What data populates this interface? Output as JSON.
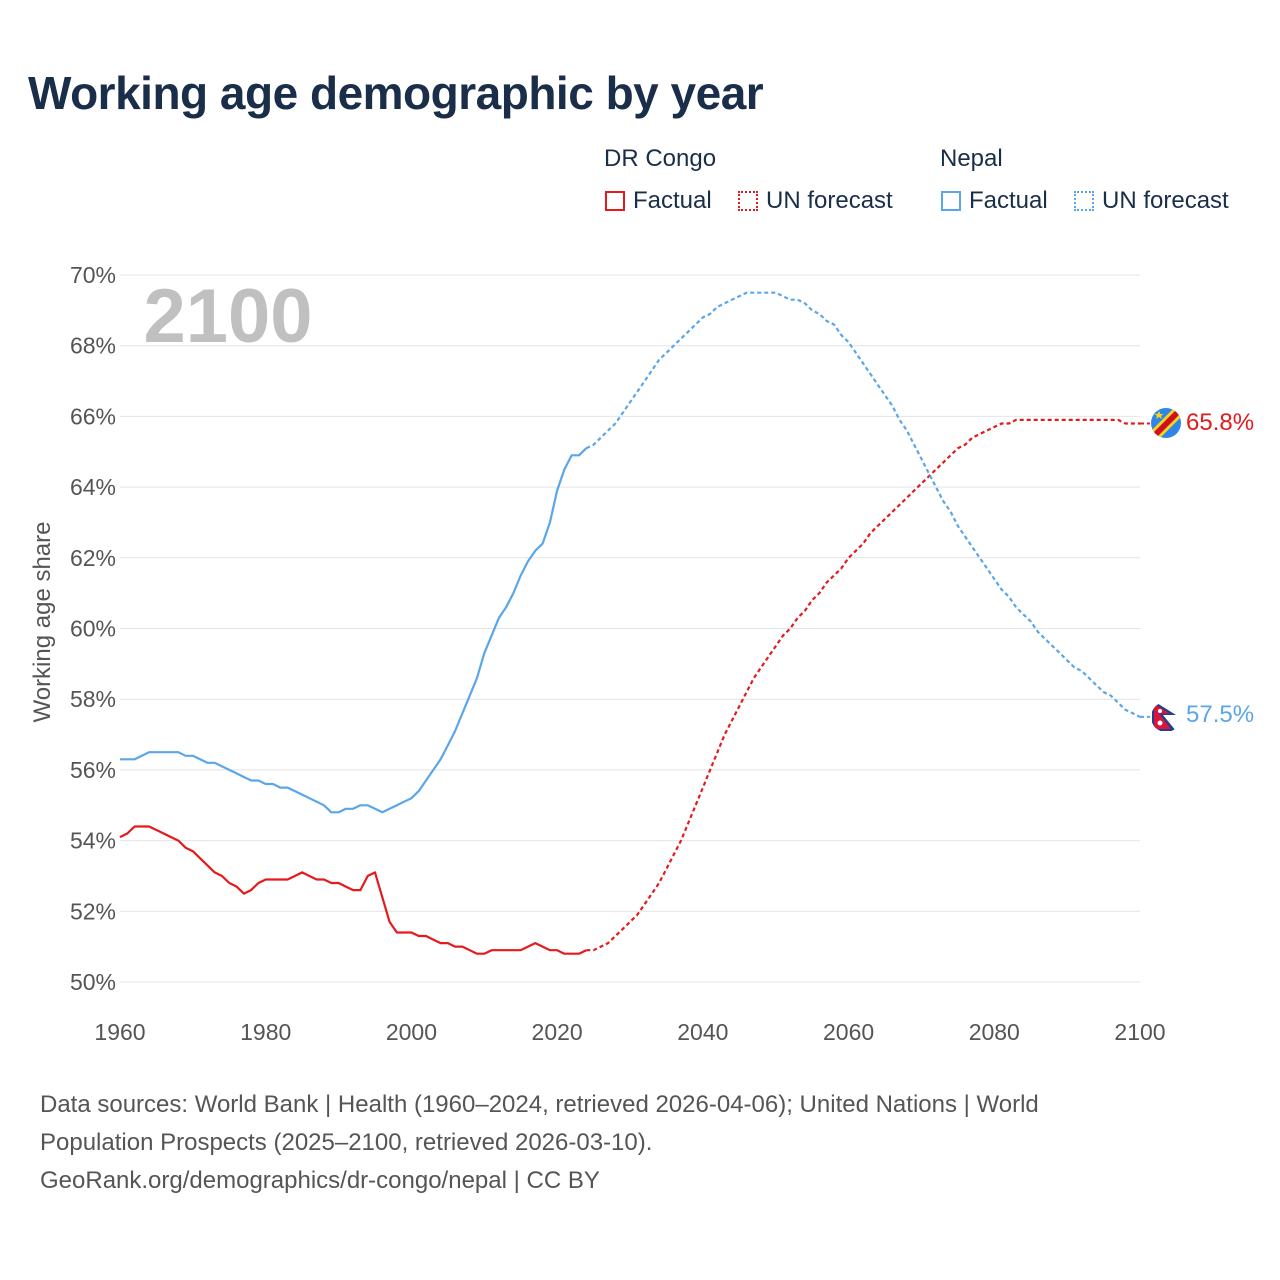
{
  "title": "Working age demographic by year",
  "legend": {
    "groups": [
      {
        "name": "DR Congo",
        "color": "#e41a1c",
        "factual_label": "Factual",
        "forecast_label": "UN forecast"
      },
      {
        "name": "Nepal",
        "color": "#5aa6e8",
        "factual_label": "Factual",
        "forecast_label": "UN forecast"
      }
    ]
  },
  "year_watermark": "2100",
  "end_labels": {
    "dr_congo": "65.8%",
    "nepal": "57.5%"
  },
  "sources": {
    "line1": "Data sources: World Bank | Health (1960–2024, retrieved 2026-04-06); United Nations | World",
    "line2": "Population Prospects (2025–2100, retrieved 2026-03-10).",
    "line3": "GeoRank.org/demographics/dr-congo/nepal | CC BY"
  },
  "chart_data": {
    "type": "line",
    "title": "Working age demographic by year",
    "xlabel": "",
    "ylabel": "Working age share",
    "xlim": [
      1960,
      2100
    ],
    "ylim": [
      50,
      70
    ],
    "x_ticks": [
      1960,
      1980,
      2000,
      2020,
      2040,
      2060,
      2080,
      2100
    ],
    "y_ticks": [
      50,
      52,
      54,
      56,
      58,
      60,
      62,
      64,
      66,
      68,
      70
    ],
    "y_tick_labels": [
      "50%",
      "52%",
      "54%",
      "56%",
      "58%",
      "60%",
      "62%",
      "64%",
      "66%",
      "68%",
      "70%"
    ],
    "grid": true,
    "series": [
      {
        "name": "DR Congo",
        "color": "#e41a1c",
        "end_value": 65.8,
        "factual": [
          [
            1960,
            54.1
          ],
          [
            1961,
            54.2
          ],
          [
            1962,
            54.4
          ],
          [
            1963,
            54.4
          ],
          [
            1964,
            54.4
          ],
          [
            1965,
            54.3
          ],
          [
            1966,
            54.2
          ],
          [
            1967,
            54.1
          ],
          [
            1968,
            54.0
          ],
          [
            1969,
            53.8
          ],
          [
            1970,
            53.7
          ],
          [
            1971,
            53.5
          ],
          [
            1972,
            53.3
          ],
          [
            1973,
            53.1
          ],
          [
            1974,
            53.0
          ],
          [
            1975,
            52.8
          ],
          [
            1976,
            52.7
          ],
          [
            1977,
            52.5
          ],
          [
            1978,
            52.6
          ],
          [
            1979,
            52.8
          ],
          [
            1980,
            52.9
          ],
          [
            1981,
            52.9
          ],
          [
            1982,
            52.9
          ],
          [
            1983,
            52.9
          ],
          [
            1984,
            53.0
          ],
          [
            1985,
            53.1
          ],
          [
            1986,
            53.0
          ],
          [
            1987,
            52.9
          ],
          [
            1988,
            52.9
          ],
          [
            1989,
            52.8
          ],
          [
            1990,
            52.8
          ],
          [
            1991,
            52.7
          ],
          [
            1992,
            52.6
          ],
          [
            1993,
            52.6
          ],
          [
            1994,
            53.0
          ],
          [
            1995,
            53.1
          ],
          [
            1996,
            52.4
          ],
          [
            1997,
            51.7
          ],
          [
            1998,
            51.4
          ],
          [
            1999,
            51.4
          ],
          [
            2000,
            51.4
          ],
          [
            2001,
            51.3
          ],
          [
            2002,
            51.3
          ],
          [
            2003,
            51.2
          ],
          [
            2004,
            51.1
          ],
          [
            2005,
            51.1
          ],
          [
            2006,
            51.0
          ],
          [
            2007,
            51.0
          ],
          [
            2008,
            50.9
          ],
          [
            2009,
            50.8
          ],
          [
            2010,
            50.8
          ],
          [
            2011,
            50.9
          ],
          [
            2012,
            50.9
          ],
          [
            2013,
            50.9
          ],
          [
            2014,
            50.9
          ],
          [
            2015,
            50.9
          ],
          [
            2016,
            51.0
          ],
          [
            2017,
            51.1
          ],
          [
            2018,
            51.0
          ],
          [
            2019,
            50.9
          ],
          [
            2020,
            50.9
          ],
          [
            2021,
            50.8
          ],
          [
            2022,
            50.8
          ],
          [
            2023,
            50.8
          ],
          [
            2024,
            50.9
          ]
        ],
        "forecast": [
          [
            2024,
            50.9
          ],
          [
            2025,
            50.9
          ],
          [
            2026,
            51.0
          ],
          [
            2027,
            51.1
          ],
          [
            2028,
            51.3
          ],
          [
            2029,
            51.5
          ],
          [
            2030,
            51.7
          ],
          [
            2031,
            51.9
          ],
          [
            2032,
            52.2
          ],
          [
            2033,
            52.5
          ],
          [
            2034,
            52.8
          ],
          [
            2035,
            53.2
          ],
          [
            2036,
            53.6
          ],
          [
            2037,
            54.0
          ],
          [
            2038,
            54.5
          ],
          [
            2039,
            55.0
          ],
          [
            2040,
            55.5
          ],
          [
            2041,
            56.0
          ],
          [
            2042,
            56.5
          ],
          [
            2043,
            57.0
          ],
          [
            2044,
            57.4
          ],
          [
            2045,
            57.8
          ],
          [
            2046,
            58.2
          ],
          [
            2047,
            58.6
          ],
          [
            2048,
            58.9
          ],
          [
            2049,
            59.2
          ],
          [
            2050,
            59.5
          ],
          [
            2051,
            59.8
          ],
          [
            2052,
            60.0
          ],
          [
            2053,
            60.3
          ],
          [
            2054,
            60.5
          ],
          [
            2055,
            60.8
          ],
          [
            2056,
            61.0
          ],
          [
            2057,
            61.3
          ],
          [
            2058,
            61.5
          ],
          [
            2059,
            61.7
          ],
          [
            2060,
            62.0
          ],
          [
            2061,
            62.2
          ],
          [
            2062,
            62.4
          ],
          [
            2063,
            62.7
          ],
          [
            2064,
            62.9
          ],
          [
            2065,
            63.1
          ],
          [
            2066,
            63.3
          ],
          [
            2067,
            63.5
          ],
          [
            2068,
            63.7
          ],
          [
            2069,
            63.9
          ],
          [
            2070,
            64.1
          ],
          [
            2071,
            64.3
          ],
          [
            2072,
            64.5
          ],
          [
            2073,
            64.7
          ],
          [
            2074,
            64.9
          ],
          [
            2075,
            65.1
          ],
          [
            2076,
            65.2
          ],
          [
            2077,
            65.4
          ],
          [
            2078,
            65.5
          ],
          [
            2079,
            65.6
          ],
          [
            2080,
            65.7
          ],
          [
            2081,
            65.8
          ],
          [
            2082,
            65.8
          ],
          [
            2083,
            65.9
          ],
          [
            2084,
            65.9
          ],
          [
            2085,
            65.9
          ],
          [
            2086,
            65.9
          ],
          [
            2087,
            65.9
          ],
          [
            2088,
            65.9
          ],
          [
            2089,
            65.9
          ],
          [
            2090,
            65.9
          ],
          [
            2091,
            65.9
          ],
          [
            2092,
            65.9
          ],
          [
            2093,
            65.9
          ],
          [
            2094,
            65.9
          ],
          [
            2095,
            65.9
          ],
          [
            2096,
            65.9
          ],
          [
            2097,
            65.9
          ],
          [
            2098,
            65.8
          ],
          [
            2099,
            65.8
          ],
          [
            2100,
            65.8
          ]
        ]
      },
      {
        "name": "Nepal",
        "color": "#5aa6e8",
        "end_value": 57.5,
        "factual": [
          [
            1960,
            56.3
          ],
          [
            1961,
            56.3
          ],
          [
            1962,
            56.3
          ],
          [
            1963,
            56.4
          ],
          [
            1964,
            56.5
          ],
          [
            1965,
            56.5
          ],
          [
            1966,
            56.5
          ],
          [
            1967,
            56.5
          ],
          [
            1968,
            56.5
          ],
          [
            1969,
            56.4
          ],
          [
            1970,
            56.4
          ],
          [
            1971,
            56.3
          ],
          [
            1972,
            56.2
          ],
          [
            1973,
            56.2
          ],
          [
            1974,
            56.1
          ],
          [
            1975,
            56.0
          ],
          [
            1976,
            55.9
          ],
          [
            1977,
            55.8
          ],
          [
            1978,
            55.7
          ],
          [
            1979,
            55.7
          ],
          [
            1980,
            55.6
          ],
          [
            1981,
            55.6
          ],
          [
            1982,
            55.5
          ],
          [
            1983,
            55.5
          ],
          [
            1984,
            55.4
          ],
          [
            1985,
            55.3
          ],
          [
            1986,
            55.2
          ],
          [
            1987,
            55.1
          ],
          [
            1988,
            55.0
          ],
          [
            1989,
            54.8
          ],
          [
            1990,
            54.8
          ],
          [
            1991,
            54.9
          ],
          [
            1992,
            54.9
          ],
          [
            1993,
            55.0
          ],
          [
            1994,
            55.0
          ],
          [
            1995,
            54.9
          ],
          [
            1996,
            54.8
          ],
          [
            1997,
            54.9
          ],
          [
            1998,
            55.0
          ],
          [
            1999,
            55.1
          ],
          [
            2000,
            55.2
          ],
          [
            2001,
            55.4
          ],
          [
            2002,
            55.7
          ],
          [
            2003,
            56.0
          ],
          [
            2004,
            56.3
          ],
          [
            2005,
            56.7
          ],
          [
            2006,
            57.1
          ],
          [
            2007,
            57.6
          ],
          [
            2008,
            58.1
          ],
          [
            2009,
            58.6
          ],
          [
            2010,
            59.3
          ],
          [
            2011,
            59.8
          ],
          [
            2012,
            60.3
          ],
          [
            2013,
            60.6
          ],
          [
            2014,
            61.0
          ],
          [
            2015,
            61.5
          ],
          [
            2016,
            61.9
          ],
          [
            2017,
            62.2
          ],
          [
            2018,
            62.4
          ],
          [
            2019,
            63.0
          ],
          [
            2020,
            63.9
          ],
          [
            2021,
            64.5
          ],
          [
            2022,
            64.9
          ],
          [
            2023,
            64.9
          ],
          [
            2024,
            65.1
          ]
        ],
        "forecast": [
          [
            2024,
            65.1
          ],
          [
            2025,
            65.2
          ],
          [
            2026,
            65.4
          ],
          [
            2027,
            65.6
          ],
          [
            2028,
            65.8
          ],
          [
            2029,
            66.1
          ],
          [
            2030,
            66.4
          ],
          [
            2031,
            66.7
          ],
          [
            2032,
            67.0
          ],
          [
            2033,
            67.3
          ],
          [
            2034,
            67.6
          ],
          [
            2035,
            67.8
          ],
          [
            2036,
            68.0
          ],
          [
            2037,
            68.2
          ],
          [
            2038,
            68.4
          ],
          [
            2039,
            68.6
          ],
          [
            2040,
            68.8
          ],
          [
            2041,
            68.9
          ],
          [
            2042,
            69.1
          ],
          [
            2043,
            69.2
          ],
          [
            2044,
            69.3
          ],
          [
            2045,
            69.4
          ],
          [
            2046,
            69.5
          ],
          [
            2047,
            69.5
          ],
          [
            2048,
            69.5
          ],
          [
            2049,
            69.5
          ],
          [
            2050,
            69.5
          ],
          [
            2051,
            69.4
          ],
          [
            2052,
            69.3
          ],
          [
            2053,
            69.3
          ],
          [
            2054,
            69.2
          ],
          [
            2055,
            69.0
          ],
          [
            2056,
            68.9
          ],
          [
            2057,
            68.7
          ],
          [
            2058,
            68.6
          ],
          [
            2059,
            68.3
          ],
          [
            2060,
            68.1
          ],
          [
            2061,
            67.8
          ],
          [
            2062,
            67.5
          ],
          [
            2063,
            67.2
          ],
          [
            2064,
            66.9
          ],
          [
            2065,
            66.6
          ],
          [
            2066,
            66.3
          ],
          [
            2067,
            65.9
          ],
          [
            2068,
            65.6
          ],
          [
            2069,
            65.2
          ],
          [
            2070,
            64.8
          ],
          [
            2071,
            64.4
          ],
          [
            2072,
            64.0
          ],
          [
            2073,
            63.6
          ],
          [
            2074,
            63.3
          ],
          [
            2075,
            62.9
          ],
          [
            2076,
            62.6
          ],
          [
            2077,
            62.3
          ],
          [
            2078,
            62.0
          ],
          [
            2079,
            61.7
          ],
          [
            2080,
            61.4
          ],
          [
            2081,
            61.1
          ],
          [
            2082,
            60.9
          ],
          [
            2083,
            60.6
          ],
          [
            2084,
            60.4
          ],
          [
            2085,
            60.2
          ],
          [
            2086,
            59.9
          ],
          [
            2087,
            59.7
          ],
          [
            2088,
            59.5
          ],
          [
            2089,
            59.3
          ],
          [
            2090,
            59.1
          ],
          [
            2091,
            58.9
          ],
          [
            2092,
            58.8
          ],
          [
            2093,
            58.6
          ],
          [
            2094,
            58.4
          ],
          [
            2095,
            58.2
          ],
          [
            2096,
            58.1
          ],
          [
            2097,
            57.9
          ],
          [
            2098,
            57.7
          ],
          [
            2099,
            57.6
          ],
          [
            2100,
            57.5
          ]
        ]
      }
    ]
  }
}
